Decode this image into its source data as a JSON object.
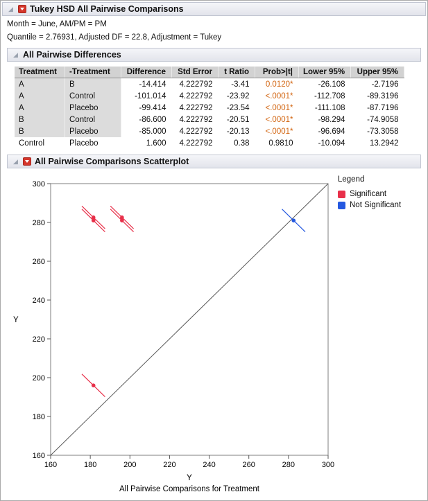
{
  "colors": {
    "significant_p": "#d2640f",
    "significant": "#e8304a",
    "not_significant": "#2458e0"
  },
  "report": {
    "main_header": "Tukey HSD All Pairwise Comparisons",
    "where_line": "Month = June, AM/PM = PM",
    "quantile_line": "Quantile = 2.76931, Adjusted DF = 22.8, Adjustment = Tukey",
    "differences": {
      "header": "All Pairwise Differences",
      "table": {
        "columns": [
          "Treatment",
          "-Treatment",
          "Difference",
          "Std Error",
          "t Ratio",
          "Prob>|t|",
          "Lower 95%",
          "Upper 95%"
        ],
        "rows": [
          {
            "treatment": "A",
            "minus_treatment": "B",
            "difference": "-14.414",
            "std_error": "4.222792",
            "t_ratio": "-3.41",
            "prob": "0.0120*",
            "sig": true,
            "lower_95": "-26.108",
            "upper_95": "-2.7196"
          },
          {
            "treatment": "A",
            "minus_treatment": "Control",
            "difference": "-101.014",
            "std_error": "4.222792",
            "t_ratio": "-23.92",
            "prob": "<.0001*",
            "sig": true,
            "lower_95": "-112.708",
            "upper_95": "-89.3196"
          },
          {
            "treatment": "A",
            "minus_treatment": "Placebo",
            "difference": "-99.414",
            "std_error": "4.222792",
            "t_ratio": "-23.54",
            "prob": "<.0001*",
            "sig": true,
            "lower_95": "-111.108",
            "upper_95": "-87.7196"
          },
          {
            "treatment": "B",
            "minus_treatment": "Control",
            "difference": "-86.600",
            "std_error": "4.222792",
            "t_ratio": "-20.51",
            "prob": "<.0001*",
            "sig": true,
            "lower_95": "-98.294",
            "upper_95": "-74.9058"
          },
          {
            "treatment": "B",
            "minus_treatment": "Placebo",
            "difference": "-85.000",
            "std_error": "4.222792",
            "t_ratio": "-20.13",
            "prob": "<.0001*",
            "sig": true,
            "lower_95": "-96.694",
            "upper_95": "-73.3058"
          },
          {
            "treatment": "Control",
            "minus_treatment": "Placebo",
            "difference": "1.600",
            "std_error": "4.222792",
            "t_ratio": "0.38",
            "prob": "0.9810",
            "sig": false,
            "lower_95": "-10.094",
            "upper_95": "13.2942"
          }
        ]
      }
    },
    "scatterplot_header": "All Pairwise Comparisons Scatterplot"
  },
  "legend": {
    "title": "Legend",
    "items": [
      {
        "label": "Significant",
        "color": "#e8304a"
      },
      {
        "label": "Not Significant",
        "color": "#2458e0"
      }
    ]
  },
  "chart_data": {
    "type": "scatter",
    "title": "All Pairwise Comparisons Scatterplot",
    "xlabel": "Y",
    "ylabel": "Y",
    "x_axis_caption": "All Pairwise Comparisons for Treatment",
    "xlim": [
      160,
      300
    ],
    "ylim": [
      160,
      300
    ],
    "xticks": [
      160,
      180,
      200,
      220,
      240,
      260,
      280,
      300
    ],
    "yticks": [
      160,
      180,
      200,
      220,
      240,
      260,
      280,
      300
    ],
    "grid": false,
    "identity_line": true,
    "legend_position": "top-right",
    "interval_half_width": 11.694,
    "points": [
      {
        "pair": "A vs B",
        "x": 181.6,
        "y": 196.0,
        "significant": true
      },
      {
        "pair": "A vs Control",
        "x": 181.6,
        "y": 282.6,
        "significant": true
      },
      {
        "pair": "A vs Placebo",
        "x": 181.6,
        "y": 281.0,
        "significant": true
      },
      {
        "pair": "B vs Control",
        "x": 196.0,
        "y": 282.6,
        "significant": true
      },
      {
        "pair": "B vs Placebo",
        "x": 196.0,
        "y": 281.0,
        "significant": true
      },
      {
        "pair": "Control vs Placebo",
        "x": 282.6,
        "y": 281.0,
        "significant": false
      }
    ],
    "colors": {
      "significant": "#e8304a",
      "not_significant": "#2458e0"
    }
  }
}
